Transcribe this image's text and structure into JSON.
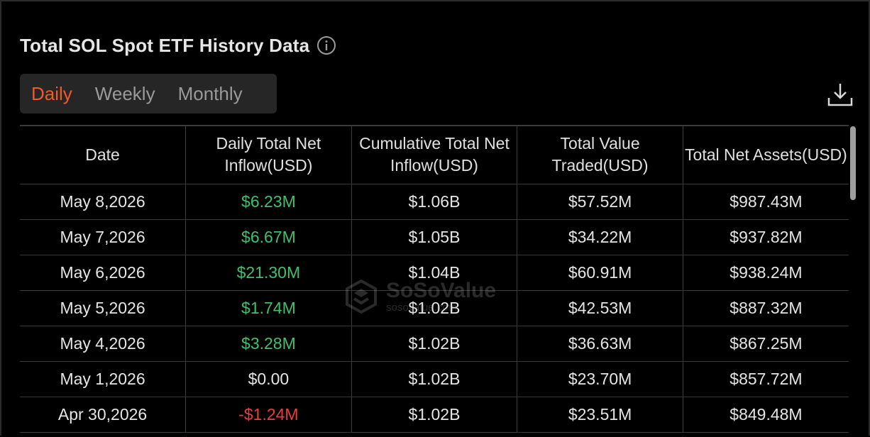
{
  "header": {
    "title": "Total SOL Spot ETF History Data",
    "info_icon": "info-circle-icon"
  },
  "tabs": [
    {
      "label": "Daily",
      "active": true
    },
    {
      "label": "Weekly",
      "active": false
    },
    {
      "label": "Monthly",
      "active": false
    }
  ],
  "toolbar": {
    "download_icon": "download-icon"
  },
  "colors": {
    "accent": "#f05a28",
    "positive": "#3cc26a",
    "negative": "#ea3d3d"
  },
  "table": {
    "columns": [
      "Date",
      "Daily Total Net Inflow(USD)",
      "Cumulative Total Net Inflow(USD)",
      "Total Value Traded(USD)",
      "Total Net Assets(USD)"
    ],
    "rows": [
      {
        "date": "May 8,2026",
        "inflow": "$6.23M",
        "inflow_sign": "pos",
        "cumulative": "$1.06B",
        "traded": "$57.52M",
        "assets": "$987.43M"
      },
      {
        "date": "May 7,2026",
        "inflow": "$6.67M",
        "inflow_sign": "pos",
        "cumulative": "$1.05B",
        "traded": "$34.22M",
        "assets": "$937.82M"
      },
      {
        "date": "May 6,2026",
        "inflow": "$21.30M",
        "inflow_sign": "pos",
        "cumulative": "$1.04B",
        "traded": "$60.91M",
        "assets": "$938.24M"
      },
      {
        "date": "May 5,2026",
        "inflow": "$1.74M",
        "inflow_sign": "pos",
        "cumulative": "$1.02B",
        "traded": "$42.53M",
        "assets": "$887.32M"
      },
      {
        "date": "May 4,2026",
        "inflow": "$3.28M",
        "inflow_sign": "pos",
        "cumulative": "$1.02B",
        "traded": "$36.63M",
        "assets": "$867.25M"
      },
      {
        "date": "May 1,2026",
        "inflow": "$0.00",
        "inflow_sign": "neu",
        "cumulative": "$1.02B",
        "traded": "$23.70M",
        "assets": "$857.72M"
      },
      {
        "date": "Apr 30,2026",
        "inflow": "-$1.24M",
        "inflow_sign": "neg",
        "cumulative": "$1.02B",
        "traded": "$23.51M",
        "assets": "$849.48M"
      }
    ]
  },
  "watermark": {
    "brand": "SoSoValue",
    "url": "sosovalue.com"
  }
}
